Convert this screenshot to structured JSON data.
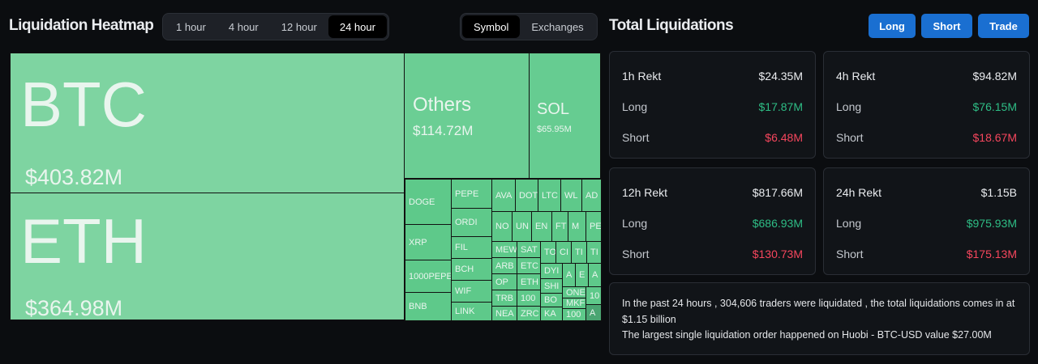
{
  "heatmap": {
    "title": "Liquidation Heatmap",
    "time_tabs": [
      "1 hour",
      "4 hour",
      "12 hour",
      "24 hour"
    ],
    "active_time": "24 hour",
    "view_tabs": [
      "Symbol",
      "Exchanges"
    ],
    "active_view": "Symbol",
    "big": [
      {
        "symbol": "BTC",
        "value": "$403.82M"
      },
      {
        "symbol": "ETH",
        "value": "$364.98M"
      },
      {
        "symbol": "Others",
        "value": "$114.72M"
      },
      {
        "symbol": "SOL",
        "value": "$65.95M"
      }
    ],
    "small": [
      "DOGE",
      "XRP",
      "1000PEPE",
      "BNB",
      "PEPE",
      "ORDI",
      "FIL",
      "BCH",
      "WIF",
      "LINK",
      "AVA",
      "DOT",
      "LTC",
      "WL",
      "AD",
      "NO",
      "UN",
      "EN",
      "FT",
      "M",
      "PE",
      "MEW",
      "ARB",
      "OP",
      "TRB",
      "NEA",
      "SAT",
      "ETC",
      "ETH",
      "100",
      "ZRC",
      "TO",
      "CI",
      "TI",
      "TI",
      "DYI",
      "SHI",
      "BO",
      "KA",
      "A",
      "E",
      "A",
      "ONE",
      "MKF",
      "100",
      "10",
      "A"
    ]
  },
  "total": {
    "title": "Total Liquidations",
    "buttons": [
      "Long",
      "Short",
      "Trade"
    ],
    "cards": [
      {
        "label": "1h Rekt",
        "total": "$24.35M",
        "long_label": "Long",
        "long": "$17.87M",
        "short_label": "Short",
        "short": "$6.48M"
      },
      {
        "label": "4h Rekt",
        "total": "$94.82M",
        "long_label": "Long",
        "long": "$76.15M",
        "short_label": "Short",
        "short": "$18.67M"
      },
      {
        "label": "12h Rekt",
        "total": "$817.66M",
        "long_label": "Long",
        "long": "$686.93M",
        "short_label": "Short",
        "short": "$130.73M"
      },
      {
        "label": "24h Rekt",
        "total": "$1.15B",
        "long_label": "Long",
        "long": "$975.93M",
        "short_label": "Short",
        "short": "$175.13M"
      }
    ],
    "summary_line1": "In the past 24 hours , 304,606 traders were liquidated , the total liquidations comes in at $1.15 billion",
    "summary_line2": "The largest single liquidation order happened on Huobi - BTC-USD value $27.00M"
  },
  "colors": {
    "long": "#2ebd85",
    "short": "#f6465d",
    "button": "#1a6fd1",
    "treemap": "#5ec98a"
  }
}
